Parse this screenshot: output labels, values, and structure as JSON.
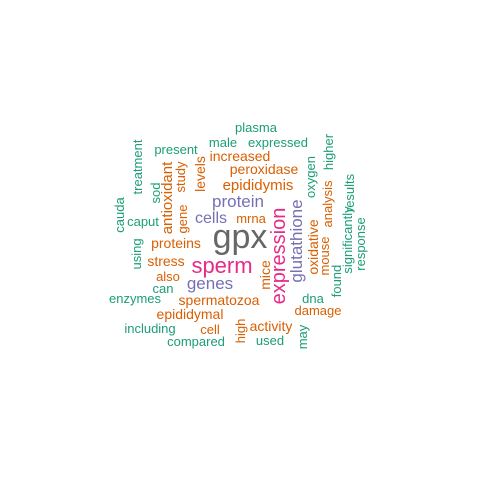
{
  "colors": {
    "teal": "#1b9e77",
    "orange": "#d95f02",
    "purple": "#7570b3",
    "magenta": "#e7298a",
    "gray": "#666666"
  },
  "words": [
    {
      "text": "plasma",
      "color": "teal"
    },
    {
      "text": "male",
      "color": "teal"
    },
    {
      "text": "expressed",
      "color": "teal"
    },
    {
      "text": "present",
      "color": "teal"
    },
    {
      "text": "treatment",
      "color": "teal"
    },
    {
      "text": "increased",
      "color": "orange"
    },
    {
      "text": "higher",
      "color": "teal"
    },
    {
      "text": "peroxidase",
      "color": "orange"
    },
    {
      "text": "levels",
      "color": "orange"
    },
    {
      "text": "study",
      "color": "orange"
    },
    {
      "text": "sod",
      "color": "teal"
    },
    {
      "text": "oxygen",
      "color": "teal"
    },
    {
      "text": "epididymis",
      "color": "orange"
    },
    {
      "text": "results",
      "color": "teal"
    },
    {
      "text": "gene",
      "color": "orange"
    },
    {
      "text": "antioxidant",
      "color": "orange"
    },
    {
      "text": "cauda",
      "color": "teal"
    },
    {
      "text": "protein",
      "color": "purple"
    },
    {
      "text": "analysis",
      "color": "orange"
    },
    {
      "text": "caput",
      "color": "teal"
    },
    {
      "text": "cells",
      "color": "purple"
    },
    {
      "text": "mrna",
      "color": "orange"
    },
    {
      "text": "significantly",
      "color": "teal"
    },
    {
      "text": "response",
      "color": "teal"
    },
    {
      "text": "expression",
      "color": "magenta"
    },
    {
      "text": "glutathione",
      "color": "purple"
    },
    {
      "text": "gpx",
      "color": "gray"
    },
    {
      "text": "proteins",
      "color": "orange"
    },
    {
      "text": "oxidative",
      "color": "orange"
    },
    {
      "text": "using",
      "color": "teal"
    },
    {
      "text": "mouse",
      "color": "orange"
    },
    {
      "text": "stress",
      "color": "orange"
    },
    {
      "text": "sperm",
      "color": "magenta"
    },
    {
      "text": "mice",
      "color": "orange"
    },
    {
      "text": "also",
      "color": "orange"
    },
    {
      "text": "found",
      "color": "teal"
    },
    {
      "text": "genes",
      "color": "purple"
    },
    {
      "text": "can",
      "color": "teal"
    },
    {
      "text": "enzymes",
      "color": "teal"
    },
    {
      "text": "spermatozoa",
      "color": "orange"
    },
    {
      "text": "dna",
      "color": "teal"
    },
    {
      "text": "damage",
      "color": "orange"
    },
    {
      "text": "epididymal",
      "color": "orange"
    },
    {
      "text": "including",
      "color": "teal"
    },
    {
      "text": "cell",
      "color": "orange"
    },
    {
      "text": "activity",
      "color": "orange"
    },
    {
      "text": "high",
      "color": "orange"
    },
    {
      "text": "compared",
      "color": "teal"
    },
    {
      "text": "used",
      "color": "teal"
    },
    {
      "text": "may",
      "color": "teal"
    }
  ]
}
